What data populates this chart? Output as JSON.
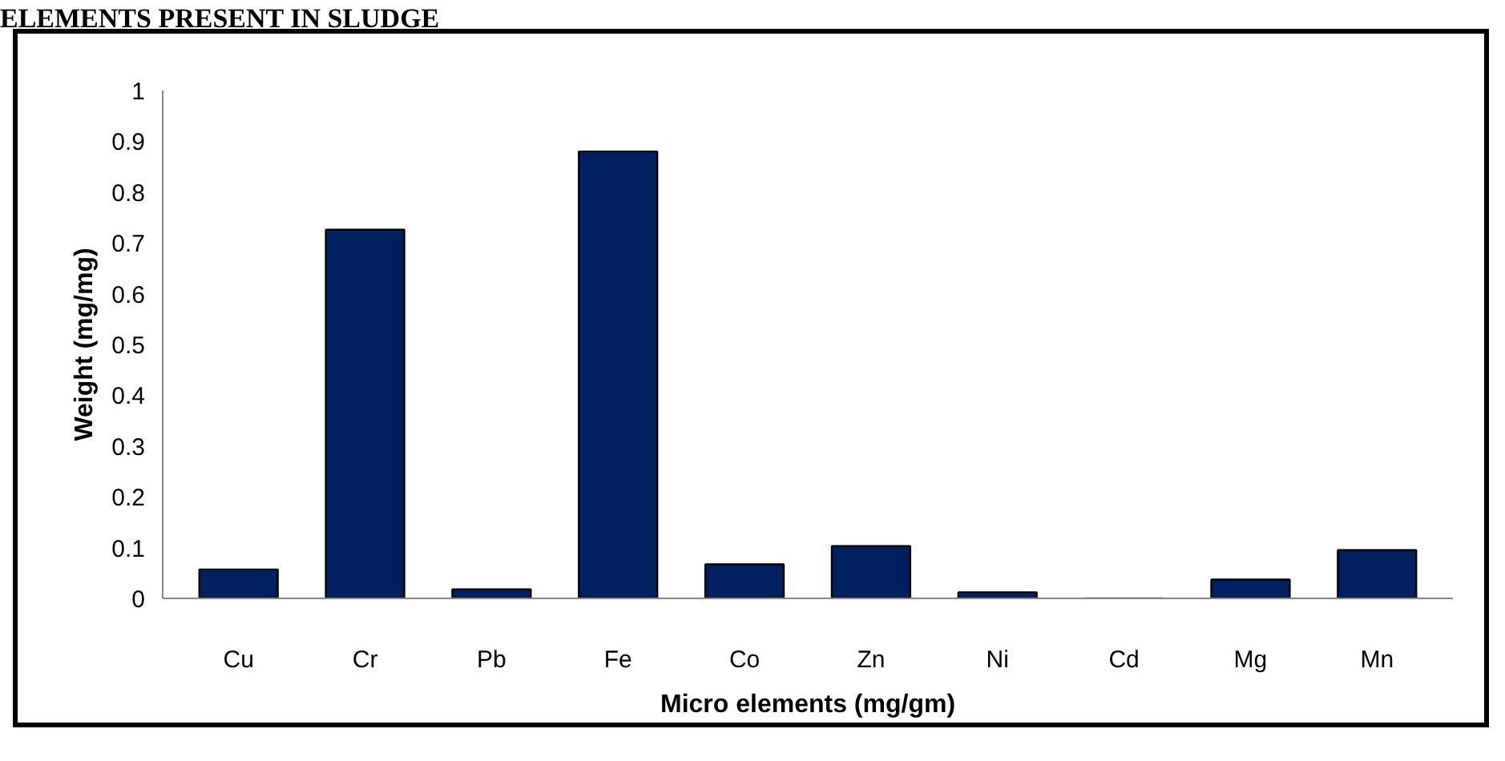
{
  "chart_data": {
    "type": "bar",
    "title": "ELEMENTS PRESENT IN SLUDGE",
    "xlabel": "Micro elements (mg/gm)",
    "ylabel": "Weight (mg/mg)",
    "categories": [
      "Cu",
      "Cr",
      "Pb",
      "Fe",
      "Co",
      "Zn",
      "Ni",
      "Cd",
      "Mg",
      "Mn"
    ],
    "values": [
      0.057,
      0.726,
      0.018,
      0.88,
      0.067,
      0.103,
      0.012,
      0,
      0.037,
      0.095
    ],
    "color": "#002060",
    "ylim": [
      0,
      1
    ],
    "yticks": [
      0,
      0.1,
      0.2,
      0.3,
      0.4,
      0.5,
      0.6,
      0.7,
      0.8,
      0.9,
      1
    ],
    "grid": false
  }
}
